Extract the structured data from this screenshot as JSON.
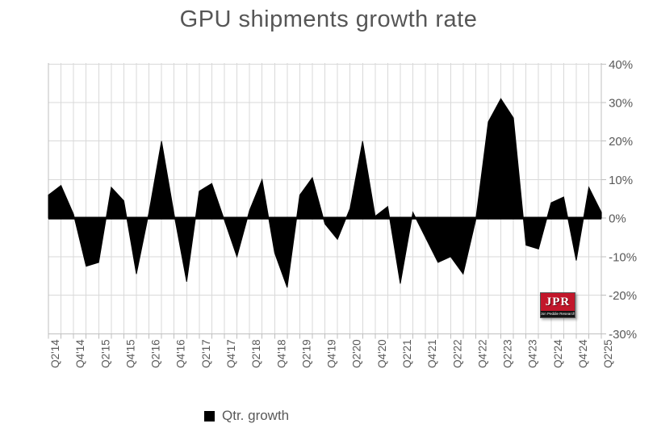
{
  "title": "GPU shipments growth rate",
  "legend": {
    "label": "Qtr. growth",
    "marker_color": "#000000"
  },
  "logo": {
    "text": "JPR",
    "subtext": "Jon Peddie Research"
  },
  "colors": {
    "background": "#ffffff",
    "area": "#000000",
    "gridline": "#d9d9d9",
    "axis_line": "#bfbfbf",
    "title_text": "#565656",
    "axis_text": "#595959",
    "logo_red": "#c2172b",
    "logo_band": "#141414"
  },
  "chart_data": {
    "type": "area",
    "title": "GPU shipments growth rate",
    "x": [
      "Q2'14",
      "Q3'14",
      "Q4'14",
      "Q1'15",
      "Q2'15",
      "Q3'15",
      "Q4'15",
      "Q1'16",
      "Q2'16",
      "Q3'16",
      "Q4'16",
      "Q1'17",
      "Q2'17",
      "Q3'17",
      "Q4'17",
      "Q1'18",
      "Q2'18",
      "Q3'18",
      "Q4'18",
      "Q1'19",
      "Q2'19",
      "Q3'19",
      "Q4'19",
      "Q1'20",
      "Q2'20",
      "Q3'20",
      "Q4'20",
      "Q1'21",
      "Q2'21",
      "Q3'21",
      "Q4'21",
      "Q1'22",
      "Q2'22",
      "Q3'22",
      "Q4'22",
      "Q1'23",
      "Q2'23",
      "Q3'23",
      "Q4'23",
      "Q1'24",
      "Q2'24",
      "Q3'24",
      "Q4'24",
      "Q1'25",
      "Q2'25"
    ],
    "values": [
      6,
      8.5,
      1,
      -12.5,
      -11.5,
      8,
      4.5,
      -14.5,
      1.5,
      20,
      1,
      -16.5,
      7,
      9,
      -0.5,
      -10,
      2,
      10,
      -9,
      -18,
      6,
      10.5,
      -1.5,
      -5.5,
      2.5,
      20,
      0.5,
      3,
      -17,
      1.5,
      -5,
      -11.5,
      -10,
      -14.5,
      -0.5,
      25,
      31,
      26,
      -7,
      -8,
      4,
      5.5,
      -11,
      8,
      1.5
    ],
    "series_name": "Qtr. growth",
    "x_tick_labels": [
      "Q2'14",
      "Q4'14",
      "Q2'15",
      "Q4'15",
      "Q2'16",
      "Q4'16",
      "Q2'17",
      "Q4'17",
      "Q2'18",
      "Q4'18",
      "Q2'19",
      "Q4'19",
      "Q2'20",
      "Q4'20",
      "Q2'21",
      "Q4'21",
      "Q2'22",
      "Q4'22",
      "Q2'23",
      "Q4'23",
      "Q2'24",
      "Q4'24",
      "Q2'25"
    ],
    "y_tick_labels": [
      "40%",
      "30%",
      "20%",
      "10%",
      "0%",
      "-10%",
      "-20%",
      "-30%"
    ],
    "y_tick_values": [
      40,
      30,
      20,
      10,
      0,
      -10,
      -20,
      -30
    ],
    "ylim": [
      -30,
      40
    ],
    "xlabel": "",
    "ylabel": "",
    "y_axis_side": "right",
    "grid": true,
    "legend_position": "bottom"
  }
}
